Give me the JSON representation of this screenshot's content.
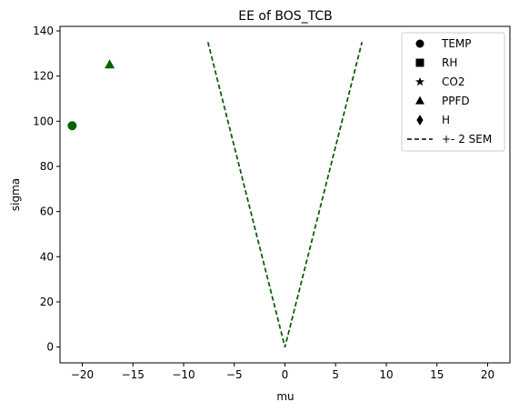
{
  "chart_data": {
    "type": "scatter",
    "title": "EE of BOS_TCB",
    "xlabel": "mu",
    "ylabel": "sigma",
    "xlim": [
      -22.2,
      22.2
    ],
    "ylim": [
      -7,
      142
    ],
    "xticks": [
      -20,
      -15,
      -10,
      -5,
      0,
      5,
      10,
      15,
      20
    ],
    "xtick_labels": [
      "−20",
      "−15",
      "−10",
      "−5",
      "0",
      "5",
      "10",
      "15",
      "20"
    ],
    "yticks": [
      0,
      20,
      40,
      60,
      80,
      100,
      120,
      140
    ],
    "ytick_labels": [
      "0",
      "20",
      "40",
      "60",
      "80",
      "100",
      "120",
      "140"
    ],
    "grid": false,
    "legend_position": "top-right",
    "points": [
      {
        "name": "TEMP",
        "marker": "circle",
        "x": -21.0,
        "y": 98,
        "color": "#006400"
      },
      {
        "name": "PPFD",
        "marker": "triangle",
        "x": -17.3,
        "y": 125,
        "color": "#006400"
      }
    ],
    "sem_lines": [
      {
        "x": [
          -7.6,
          0,
          7.6
        ],
        "y": [
          135,
          0,
          135
        ],
        "color": "#006400",
        "style": "dashed"
      }
    ],
    "legend": [
      {
        "label": "TEMP",
        "marker": "circle"
      },
      {
        "label": "RH",
        "marker": "square"
      },
      {
        "label": "CO2",
        "marker": "star"
      },
      {
        "label": "PPFD",
        "marker": "triangle"
      },
      {
        "label": "H",
        "marker": "diamond"
      },
      {
        "label": "+- 2 SEM",
        "marker": "dashed-line"
      }
    ]
  }
}
